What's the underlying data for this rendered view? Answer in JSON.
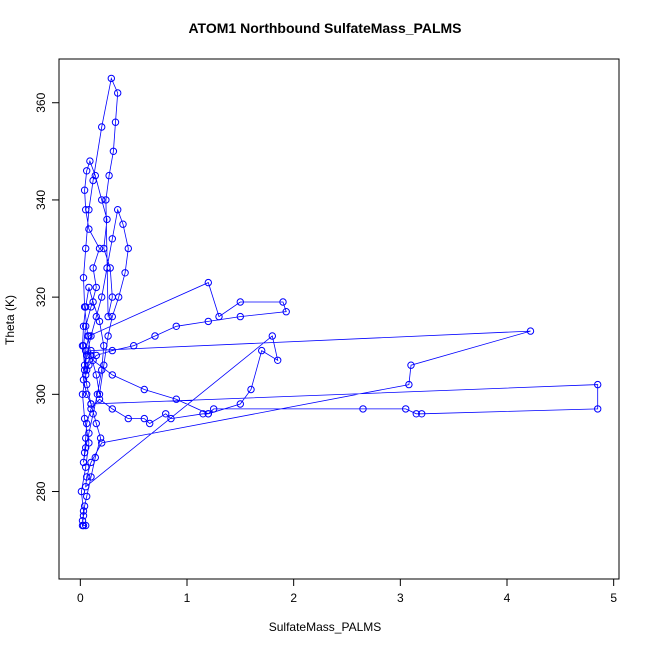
{
  "chart_data": {
    "type": "scatter",
    "title": "ATOM1 Northbound SulfateMass_PALMS",
    "xlabel": "SulfateMass_PALMS",
    "ylabel": "Theta (K)",
    "xlim": [
      -0.2,
      5.05
    ],
    "ylim": [
      262,
      369
    ],
    "xticks": [
      0,
      1,
      2,
      3,
      4,
      5
    ],
    "yticks": [
      280,
      300,
      320,
      340,
      360
    ],
    "grid": false,
    "legend": "none",
    "series": [
      {
        "color": "#0000ff",
        "marker": "open-circle",
        "line": true,
        "x": [
          0.02,
          0.03,
          0.01,
          0.05,
          0.08,
          0.04,
          0.02,
          0.06,
          0.03,
          0.05,
          0.1,
          0.15,
          0.12,
          0.18,
          0.08,
          0.05,
          0.04,
          0.06,
          0.09,
          0.14,
          0.2,
          0.25,
          0.22,
          0.28,
          0.3,
          0.26,
          0.24,
          0.27,
          0.31,
          0.33,
          0.35,
          0.29,
          0.2,
          0.12,
          0.08,
          0.05,
          0.03,
          0.04,
          0.07,
          0.1,
          0.15,
          0.18,
          0.22,
          0.26,
          0.3,
          0.36,
          0.42,
          0.45,
          0.4,
          0.35,
          0.3,
          0.25,
          0.2,
          0.15,
          0.1,
          0.06,
          0.04,
          0.05,
          0.08,
          1.2,
          1.3,
          1.5,
          1.9,
          1.93,
          1.5,
          1.2,
          0.9,
          0.7,
          0.5,
          0.3,
          0.15,
          0.08,
          0.05,
          0.1,
          4.22,
          3.1,
          3.08,
          0.2,
          0.1,
          0.06,
          0.05,
          1.8,
          1.85,
          1.7,
          1.6,
          1.5,
          1.2,
          0.9,
          0.6,
          0.3,
          0.12,
          0.05,
          0.03,
          0.06,
          0.1,
          4.85,
          4.85,
          3.2,
          3.15,
          3.05,
          2.65,
          1.25,
          1.2,
          1.15,
          0.85,
          0.8,
          0.65,
          0.6,
          0.45,
          0.3,
          0.18,
          0.1,
          0.06,
          0.05,
          0.04,
          0.03,
          0.05,
          0.08,
          0.12,
          0.16,
          0.2,
          0.22,
          0.18,
          0.12,
          0.08,
          0.05,
          0.03,
          0.02,
          0.04,
          0.06,
          0.1,
          0.15,
          0.19,
          0.14,
          0.1,
          0.06,
          0.04,
          0.03,
          0.02,
          0.03,
          0.05
        ],
        "y": [
          273,
          276,
          280,
          285,
          290,
          295,
          300,
          305,
          310,
          314,
          318,
          322,
          326,
          330,
          334,
          338,
          342,
          346,
          348,
          345,
          340,
          336,
          330,
          326,
          320,
          316,
          340,
          345,
          350,
          356,
          362,
          365,
          355,
          344,
          338,
          330,
          324,
          318,
          312,
          308,
          304,
          300,
          306,
          312,
          316,
          320,
          325,
          330,
          335,
          338,
          332,
          326,
          320,
          316,
          312,
          308,
          305,
          309,
          312,
          323,
          316,
          319,
          319,
          317,
          316,
          315,
          314,
          312,
          310,
          309,
          308,
          306,
          304,
          309,
          313,
          306,
          302,
          290,
          286,
          283,
          281,
          312,
          307,
          309,
          301,
          298,
          296,
          299,
          301,
          304,
          307,
          309,
          303,
          300,
          298,
          302,
          297,
          296,
          296,
          297,
          297,
          297,
          296,
          296,
          295,
          296,
          294,
          295,
          295,
          297,
          299,
          297,
          294,
          291,
          288,
          286,
          289,
          292,
          296,
          300,
          305,
          310,
          315,
          319,
          322,
          318,
          314,
          310,
          306,
          302,
          298,
          294,
          291,
          287,
          283,
          279,
          277,
          275,
          274,
          273,
          273
        ]
      }
    ]
  }
}
